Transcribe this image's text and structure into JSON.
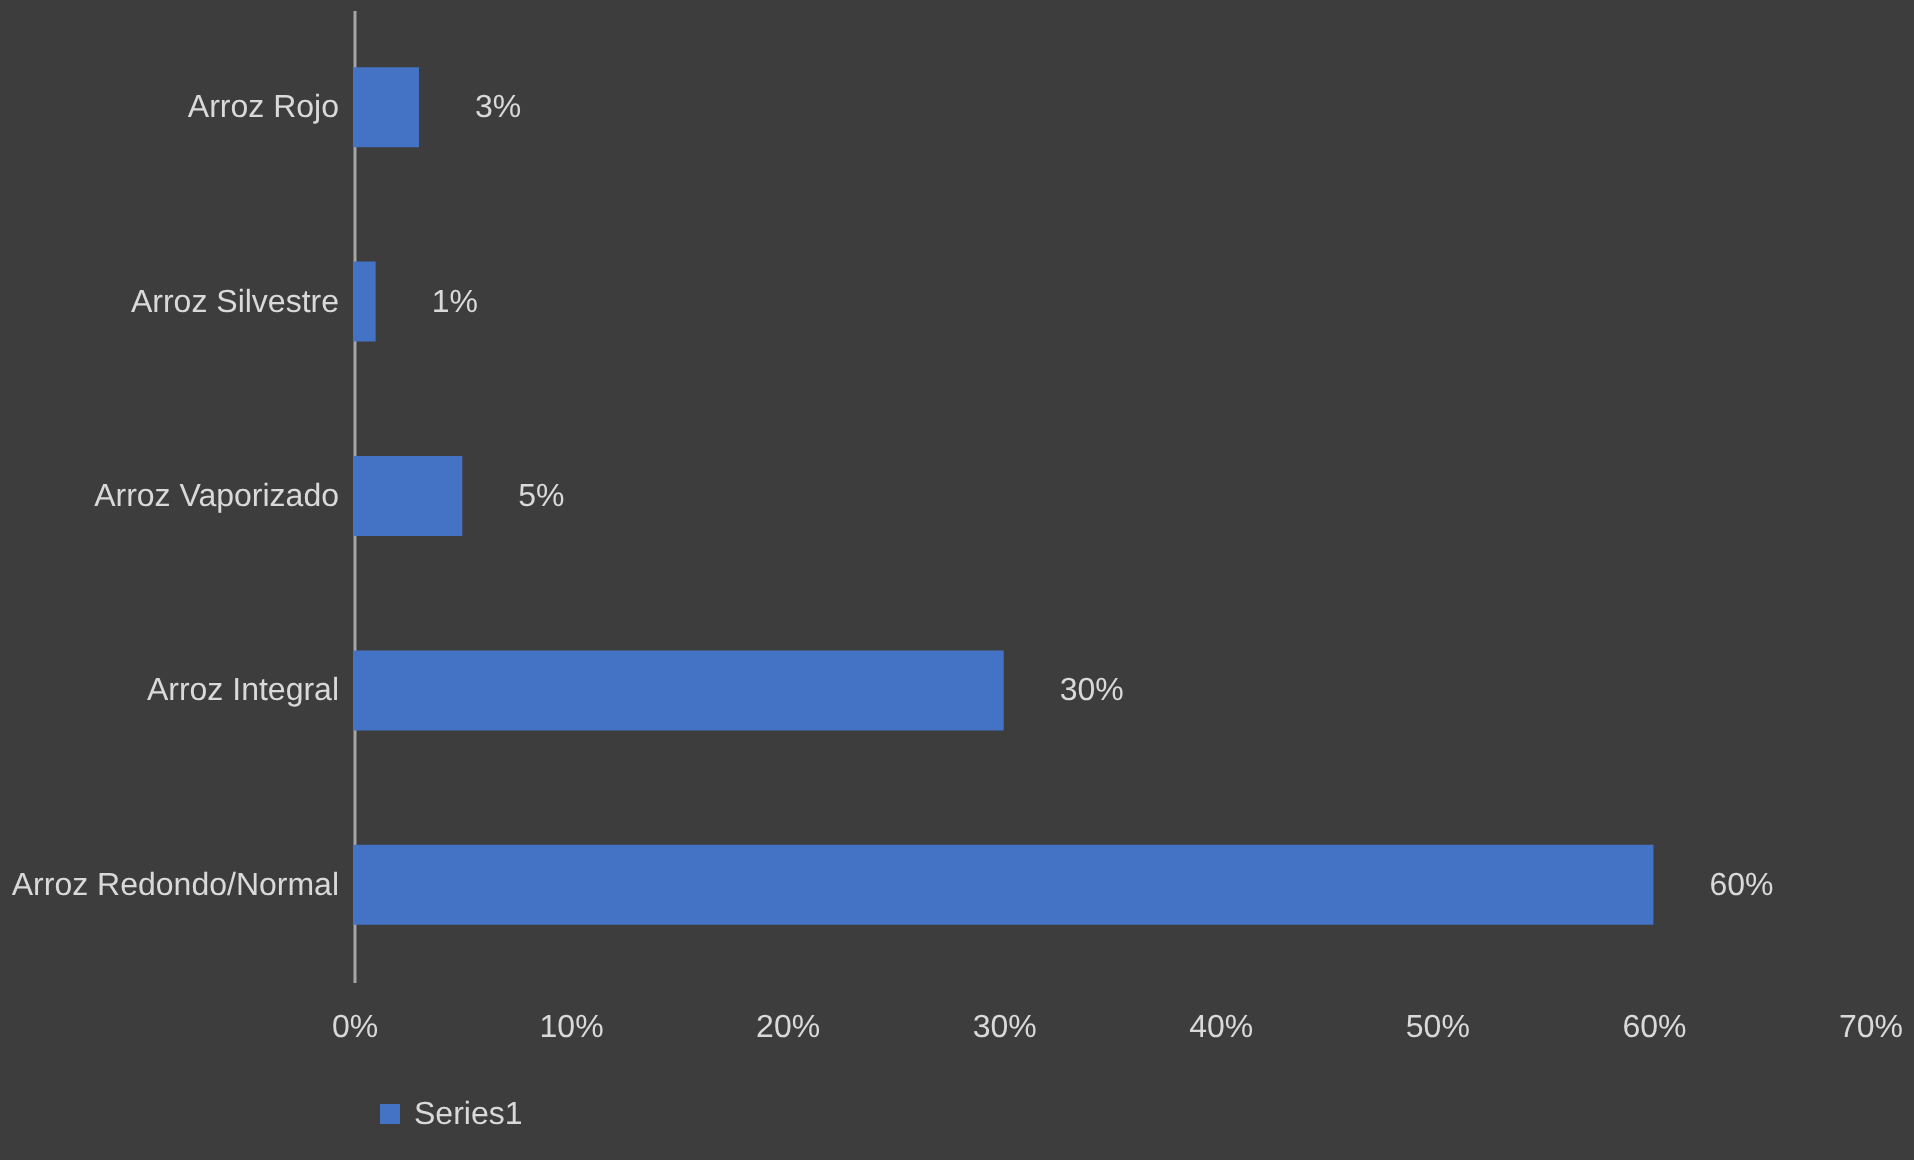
{
  "chart_data": {
    "type": "bar",
    "orientation": "horizontal",
    "categories": [
      "Arroz Rojo",
      "Arroz Silvestre",
      "Arroz Vaporizado",
      "Arroz Integral",
      "Arroz Redondo/Normal"
    ],
    "series": [
      {
        "name": "Series1",
        "color": "#4472c4",
        "values": [
          3,
          1,
          5,
          30,
          60
        ],
        "value_labels": [
          "3%",
          "1%",
          "5%",
          "30%",
          "60%"
        ]
      }
    ],
    "xlim": [
      0,
      70
    ],
    "xticks": [
      {
        "value": 0,
        "label": "0%"
      },
      {
        "value": 10,
        "label": "10%"
      },
      {
        "value": 20,
        "label": "20%"
      },
      {
        "value": 30,
        "label": "30%"
      },
      {
        "value": 40,
        "label": "40%"
      },
      {
        "value": 50,
        "label": "50%"
      },
      {
        "value": 60,
        "label": "60%"
      },
      {
        "value": 70,
        "label": "70%"
      }
    ],
    "grid": false,
    "legend": "bottom"
  }
}
